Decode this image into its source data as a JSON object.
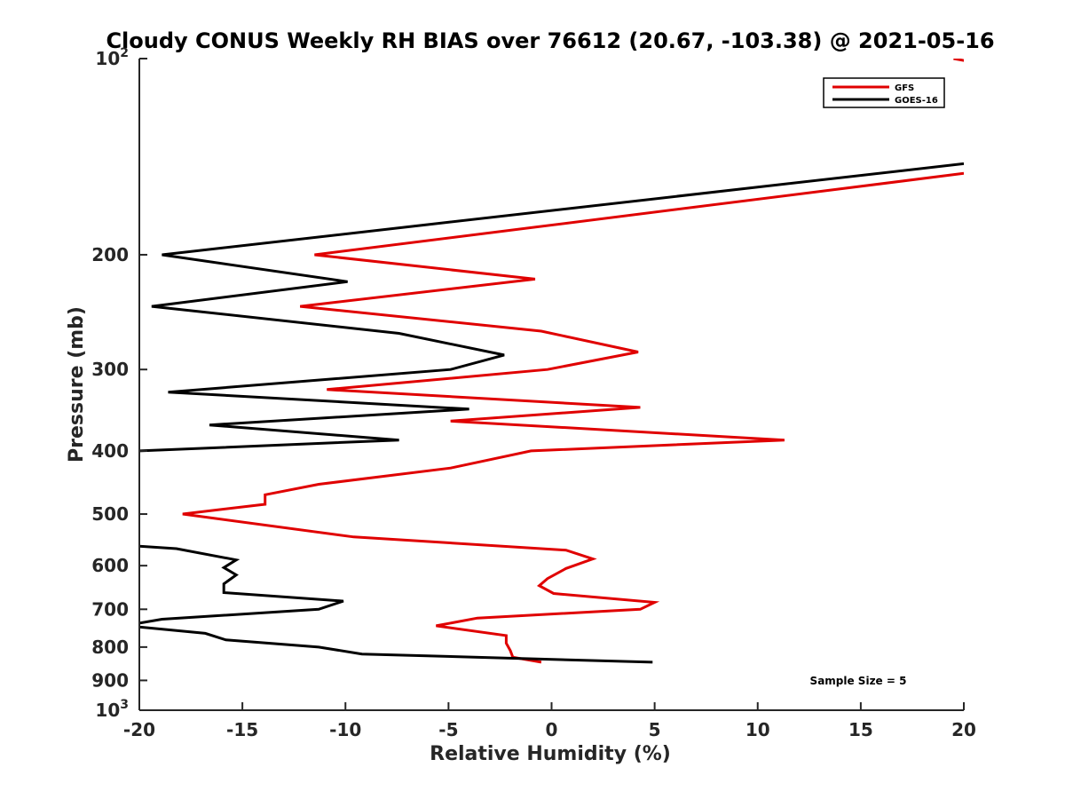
{
  "chart_data": {
    "type": "line",
    "title": "Cloudy CONUS Weekly RH BIAS over 76612 (20.67, -103.38) @ 2021-05-16",
    "xlabel": "Relative Humidity (%)",
    "ylabel": "Pressure (mb)",
    "xlim": [
      -20,
      20
    ],
    "ylim": [
      100,
      1000
    ],
    "y_scale": "log",
    "y_reversed": true,
    "x_ticks": [
      -20,
      -15,
      -10,
      -5,
      0,
      5,
      10,
      15,
      20
    ],
    "x_tick_labels": [
      "-20",
      "-15",
      "-10",
      "-5",
      "0",
      "5",
      "10",
      "15",
      "20"
    ],
    "y_ticks": [
      {
        "value": 100,
        "base": "10",
        "exp": "2"
      },
      {
        "value": 200,
        "label": "200"
      },
      {
        "value": 300,
        "label": "300"
      },
      {
        "value": 400,
        "label": "400"
      },
      {
        "value": 500,
        "label": "500"
      },
      {
        "value": 600,
        "label": "600"
      },
      {
        "value": 700,
        "label": "700"
      },
      {
        "value": 800,
        "label": "800"
      },
      {
        "value": 900,
        "label": "900"
      },
      {
        "value": 1000,
        "base": "10",
        "exp": "3"
      }
    ],
    "legend_position": "top-right",
    "annotation": "Sample Size = 5",
    "series": [
      {
        "name": "GFS",
        "color": "#e00000",
        "segments": [
          [
            {
              "x": 19.5,
              "p": 100
            },
            {
              "x": 21,
              "p": 102
            }
          ],
          [
            {
              "x": 20,
              "p": 150
            },
            {
              "x": -11.5,
              "p": 200
            },
            {
              "x": -0.8,
              "p": 218
            },
            {
              "x": -12.2,
              "p": 240
            },
            {
              "x": -0.5,
              "p": 262
            },
            {
              "x": 4.2,
              "p": 282
            },
            {
              "x": -0.2,
              "p": 300
            },
            {
              "x": -10.9,
              "p": 322
            },
            {
              "x": 4.3,
              "p": 343
            },
            {
              "x": -4.9,
              "p": 360
            },
            {
              "x": 11.3,
              "p": 385
            },
            {
              "x": -1.0,
              "p": 400
            },
            {
              "x": -4.9,
              "p": 425
            },
            {
              "x": -11.3,
              "p": 450
            },
            {
              "x": -13.9,
              "p": 467
            },
            {
              "x": -13.9,
              "p": 483
            },
            {
              "x": -17.9,
              "p": 500
            },
            {
              "x": -9.6,
              "p": 542
            },
            {
              "x": 0.7,
              "p": 568
            },
            {
              "x": 2.0,
              "p": 586
            },
            {
              "x": 0.7,
              "p": 606
            },
            {
              "x": -0.2,
              "p": 628
            },
            {
              "x": -0.6,
              "p": 644
            },
            {
              "x": 0.1,
              "p": 662
            },
            {
              "x": 5.0,
              "p": 683
            },
            {
              "x": 4.3,
              "p": 700
            },
            {
              "x": -3.6,
              "p": 722
            },
            {
              "x": -5.6,
              "p": 742
            },
            {
              "x": -2.2,
              "p": 768
            },
            {
              "x": -2.2,
              "p": 789
            },
            {
              "x": -2.0,
              "p": 810
            },
            {
              "x": -1.9,
              "p": 826
            },
            {
              "x": -1.9,
              "p": 829
            },
            {
              "x": -0.5,
              "p": 844
            }
          ]
        ]
      },
      {
        "name": "GOES-16",
        "color": "#000000",
        "segments": [
          [
            {
              "x": 20,
              "p": 145
            },
            {
              "x": -18.9,
              "p": 200
            },
            {
              "x": -9.9,
              "p": 220
            },
            {
              "x": -19.4,
              "p": 240
            },
            {
              "x": -7.4,
              "p": 264
            },
            {
              "x": -2.3,
              "p": 285
            },
            {
              "x": -4.9,
              "p": 300
            },
            {
              "x": -18.6,
              "p": 325
            },
            {
              "x": -4.0,
              "p": 345
            },
            {
              "x": -16.6,
              "p": 365
            },
            {
              "x": -7.4,
              "p": 385
            },
            {
              "x": -20,
              "p": 400
            }
          ],
          [
            {
              "x": -20,
              "p": 560
            },
            {
              "x": -18.2,
              "p": 565
            },
            {
              "x": -15.3,
              "p": 588
            },
            {
              "x": -15.9,
              "p": 604
            },
            {
              "x": -15.3,
              "p": 620
            },
            {
              "x": -15.9,
              "p": 640
            },
            {
              "x": -15.9,
              "p": 660
            },
            {
              "x": -10.1,
              "p": 680
            },
            {
              "x": -11.3,
              "p": 700
            },
            {
              "x": -18.9,
              "p": 725
            },
            {
              "x": -20,
              "p": 735
            }
          ],
          [
            {
              "x": -20,
              "p": 745
            },
            {
              "x": -16.8,
              "p": 762
            },
            {
              "x": -15.8,
              "p": 780
            },
            {
              "x": -11.3,
              "p": 800
            },
            {
              "x": -9.2,
              "p": 820
            },
            {
              "x": 4.9,
              "p": 844
            }
          ]
        ]
      }
    ]
  }
}
